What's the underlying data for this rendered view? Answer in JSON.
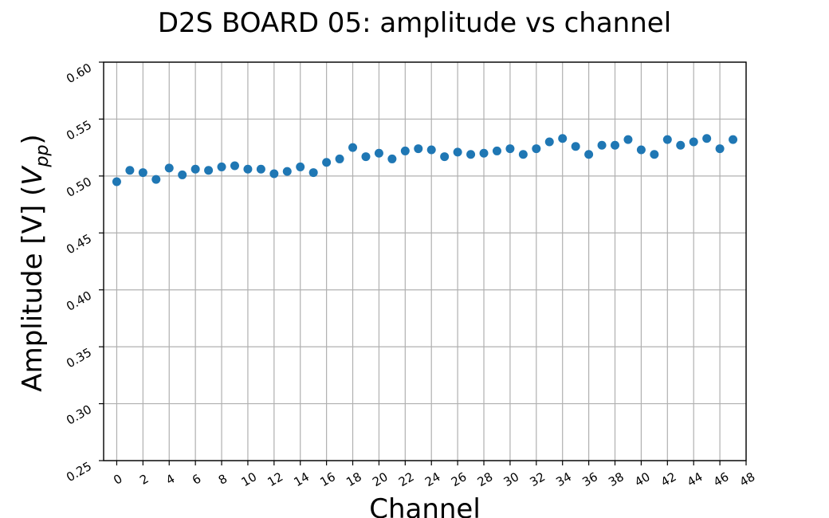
{
  "chart_data": {
    "type": "scatter",
    "title": "D2S BOARD 05: amplitude vs channel",
    "xlabel": "Channel",
    "ylabel_main": "Amplitude [V] (",
    "ylabel_var": "V",
    "ylabel_sub": "pp",
    "ylabel_close": ")",
    "xlim": [
      -1,
      48
    ],
    "ylim": [
      0.25,
      0.6
    ],
    "xticks": [
      "0",
      "2",
      "4",
      "6",
      "8",
      "10",
      "12",
      "14",
      "16",
      "18",
      "20",
      "22",
      "24",
      "26",
      "28",
      "30",
      "32",
      "34",
      "36",
      "38",
      "40",
      "42",
      "44",
      "46",
      "48"
    ],
    "yticks": [
      "0.25",
      "0.30",
      "0.35",
      "0.40",
      "0.45",
      "0.50",
      "0.55",
      "0.60"
    ],
    "grid": true,
    "marker_color": "#1f77b4",
    "x": [
      0,
      1,
      2,
      3,
      4,
      5,
      6,
      7,
      8,
      9,
      10,
      11,
      12,
      13,
      14,
      15,
      16,
      17,
      18,
      19,
      20,
      21,
      22,
      23,
      24,
      25,
      26,
      27,
      28,
      29,
      30,
      31,
      32,
      33,
      34,
      35,
      36,
      37,
      38,
      39,
      40,
      41,
      42,
      43,
      44,
      45,
      46,
      47
    ],
    "y": [
      0.495,
      0.505,
      0.503,
      0.497,
      0.507,
      0.501,
      0.506,
      0.505,
      0.508,
      0.509,
      0.506,
      0.506,
      0.502,
      0.504,
      0.508,
      0.503,
      0.512,
      0.515,
      0.525,
      0.517,
      0.52,
      0.515,
      0.522,
      0.524,
      0.523,
      0.517,
      0.521,
      0.519,
      0.52,
      0.522,
      0.524,
      0.519,
      0.524,
      0.53,
      0.533,
      0.526,
      0.519,
      0.527,
      0.527,
      0.532,
      0.523,
      0.519,
      0.532,
      0.527,
      0.53,
      0.533,
      0.524,
      0.532
    ]
  }
}
